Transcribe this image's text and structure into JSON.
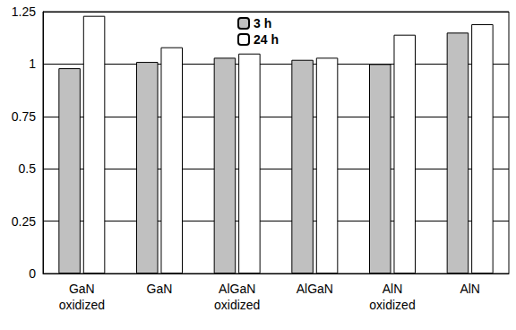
{
  "chart_data": {
    "type": "bar",
    "categories": [
      "GaN oxidized",
      "GaN",
      "AlGaN oxidized",
      "AlGaN",
      "AlN oxidized",
      "AlN"
    ],
    "series": [
      {
        "name": "3 h",
        "color": "#c0c0c0",
        "values": [
          0.98,
          1.01,
          1.03,
          1.02,
          1.0,
          1.15
        ]
      },
      {
        "name": "24 h",
        "color": "#ffffff",
        "values": [
          1.23,
          1.08,
          1.05,
          1.03,
          1.14,
          1.19
        ]
      }
    ],
    "ylim": [
      0,
      1.25
    ],
    "yticks": [
      0,
      0.25,
      0.5,
      0.75,
      1,
      1.25
    ],
    "grid": true,
    "legend": "top"
  }
}
